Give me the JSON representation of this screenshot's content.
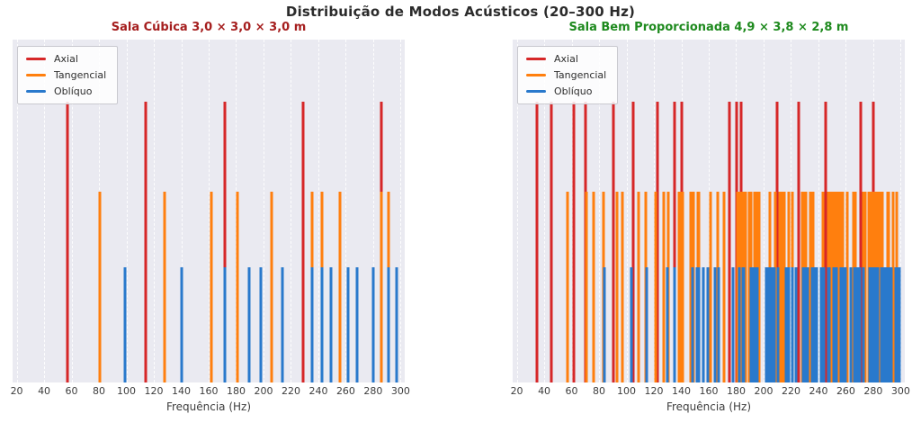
{
  "suptitle": "Distribuição de Modos Acústicos (20–300 Hz)",
  "colors": {
    "figure_background": "#ffffff",
    "plot_background": "#eaeaf1",
    "grid": "#ffffff",
    "axial": "#d62728",
    "tangencial": "#ff7f0e",
    "obliquo": "#2979cc",
    "left_title": "#a51e1e",
    "right_title": "#1e8a1e",
    "text": "#3d3d3d"
  },
  "chart_data": [
    {
      "type": "stem-vlines",
      "title": "Sala Cúbica 3,0 × 3,0 × 3,0 m",
      "title_color": "#a51e1e",
      "xlabel": "Frequência (Hz)",
      "ylabel": "",
      "xlim_hz": [
        17,
        303
      ],
      "ylim": [
        0,
        1.22
      ],
      "xticks_hz": [
        20,
        40,
        60,
        80,
        100,
        120,
        140,
        160,
        180,
        200,
        220,
        240,
        260,
        280,
        300
      ],
      "grid": "vertical-dashed-white",
      "legend_position": "upper-left",
      "series": [
        {
          "name": "Axial",
          "key": "axial",
          "color": "#d62728",
          "amplitude": 1.0,
          "frequencies_hz": [
            57.2,
            114.3,
            171.5,
            228.7,
            285.8
          ]
        },
        {
          "name": "Tangencial",
          "key": "tangencial",
          "color": "#ff7f0e",
          "amplitude": 0.68,
          "frequencies_hz": [
            80.8,
            127.8,
            161.7,
            180.8,
            206.1,
            235.7,
            242.5,
            255.7,
            285.8,
            291.5
          ]
        },
        {
          "name": "Oblíquo",
          "key": "obliquo",
          "color": "#2979cc",
          "amplitude": 0.41,
          "frequencies_hz": [
            99.0,
            140.0,
            171.5,
            189.6,
            198.0,
            213.9,
            235.7,
            242.5,
            249.2,
            262.0,
            268.1,
            280.1,
            291.5,
            297.1
          ]
        }
      ]
    },
    {
      "type": "stem-vlines",
      "title": "Sala Bem Proporcionada 4,9 × 3,8 × 2,8 m",
      "title_color": "#1e8a1e",
      "xlabel": "Frequência (Hz)",
      "ylabel": "",
      "xlim_hz": [
        17,
        303
      ],
      "ylim": [
        0,
        1.22
      ],
      "xticks_hz": [
        20,
        40,
        60,
        80,
        100,
        120,
        140,
        160,
        180,
        200,
        220,
        240,
        260,
        280,
        300
      ],
      "grid": "vertical-dashed-white",
      "legend_position": "upper-left",
      "series": [
        {
          "name": "Axial",
          "key": "axial",
          "color": "#d62728",
          "amplitude": 1.0,
          "frequencies_hz": [
            35.0,
            45.1,
            61.3,
            70.0,
            90.3,
            105.0,
            122.5,
            135.4,
            140.0,
            175.0,
            180.5,
            183.8,
            210.0,
            225.7,
            245.0,
            245.0,
            270.8,
            280.0
          ]
        },
        {
          "name": "Tangencial",
          "key": "tangencial",
          "color": "#ff7f0e",
          "amplitude": 0.68,
          "frequencies_hz": [
            57.1,
            70.5,
            76.1,
            83.3,
            93.0,
            96.8,
            109.1,
            114.2,
            114.3,
            121.6,
            127.4,
            130.5,
            138.5,
            139.8,
            141.1,
            147.1,
            148.6,
            152.2,
            152.4,
            152.8,
            161.3,
            166.6,
            171.3,
            180.7,
            182.6,
            183.9,
            185.4,
            186.0,
            187.1,
            189.2,
            190.6,
            193.6,
            194.8,
            196.6,
            196.9,
            204.7,
            208.8,
            211.6,
            213.6,
            214.8,
            218.2,
            218.7,
            221.3,
            228.2,
            228.4,
            228.5,
            228.6,
            231.0,
            233.8,
            236.3,
            243.1,
            247.5,
            248.9,
            249.1,
            249.1,
            249.9,
            251.4,
            252.5,
            253.8,
            254.8,
            256.8,
            257.6,
            261.1,
            261.1,
            265.5,
            266.6,
            273.0,
            273.9,
            276.9,
            277.6,
            279.0,
            279.7,
            279.9,
            279.9,
            282.2,
            283.6,
            285.6,
            286.6,
            290.4,
            291.0,
            294.2,
            297.2
          ]
        },
        {
          "name": "Oblíquo",
          "key": "obliquo",
          "color": "#2979cc",
          "amplitude": 0.41,
          "frequencies_hz": [
            83.8,
            103.4,
            114.6,
            129.6,
            129.7,
            135.2,
            148.1,
            151.4,
            152.7,
            156.1,
            159.3,
            164.3,
            167.5,
            167.5,
            177.5,
            182.0,
            184.9,
            185.9,
            190.8,
            191.4,
            192.4,
            193.8,
            195.5,
            201.7,
            203.1,
            204.2,
            206.2,
            206.8,
            207.7,
            210.6,
            216.4,
            216.4,
            217.6,
            218.3,
            220.9,
            223.4,
            229.1,
            229.6,
            230.1,
            230.1,
            230.9,
            231.9,
            235.4,
            236.4,
            236.5,
            236.6,
            238.7,
            242.1,
            244.1,
            247.3,
            248.0,
            251.2,
            251.6,
            252.9,
            256.3,
            256.5,
            257.3,
            257.7,
            258.8,
            258.8,
            259.1,
            259.2,
            259.3,
            260.0,
            263.4,
            266.1,
            266.9,
            267.8,
            268.2,
            269.3,
            270.3,
            270.3,
            272.5,
            277.4,
            277.6,
            278.2,
            278.3,
            279.7,
            279.8,
            281.4,
            282.1,
            282.7,
            283.6,
            285.8,
            286.3,
            286.5,
            287.6,
            288.4,
            288.5,
            290.2,
            292.1,
            292.4,
            293.1,
            293.2,
            293.3,
            296.3,
            296.8,
            299.0,
            299.3,
            299.3
          ]
        }
      ]
    }
  ]
}
